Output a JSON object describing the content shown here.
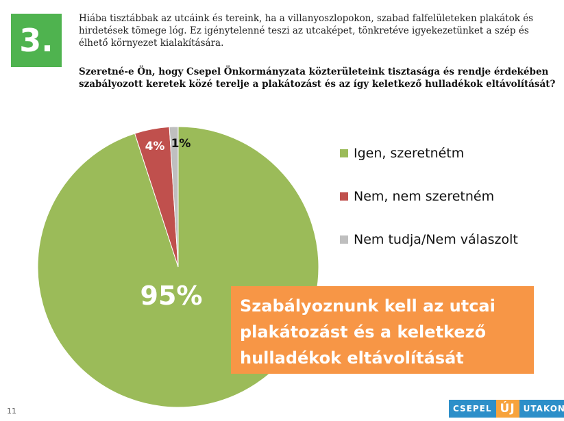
{
  "badge": "3.",
  "intro_text": "Hiába tisztábbak az utcáink és tereink, ha a villanyoszlopokon, szabad falfelületeken plakátok és hirdetések tömege lóg. Ez igénytelenné teszi az utcaképet, tönkretéve igyekezetünket a szép és élhető környezet kialakítására.",
  "question_text": "Szeretné-e Ön, hogy Csepel Önkormányzata közterületeink tisztasága és rendje érdekében szabályozott keretek közé terelje a plakátozást és az így keletkező hulladékok eltávolítását?",
  "chart_data": {
    "type": "pie",
    "title": "",
    "legend_position": "right",
    "slices": [
      {
        "label": "Igen, szeretnétm",
        "value": 95,
        "value_label": "95%",
        "color": "#9bbb59"
      },
      {
        "label": "Nem, nem szeretném",
        "value": 4,
        "value_label": "4%",
        "color": "#c0504d"
      },
      {
        "label": "Nem tudja/Nem válaszolt",
        "value": 1,
        "value_label": "1%",
        "color": "#bfbfbf"
      }
    ]
  },
  "callout_lines": [
    "Szabályoznunk kell az utcai",
    "plakátozást és a keletkező",
    "hulladékok eltávolítását"
  ],
  "page_number": "11",
  "logo": {
    "part1": "CSEPEL",
    "part2": "ÚJ",
    "part3": "UTAKON"
  }
}
